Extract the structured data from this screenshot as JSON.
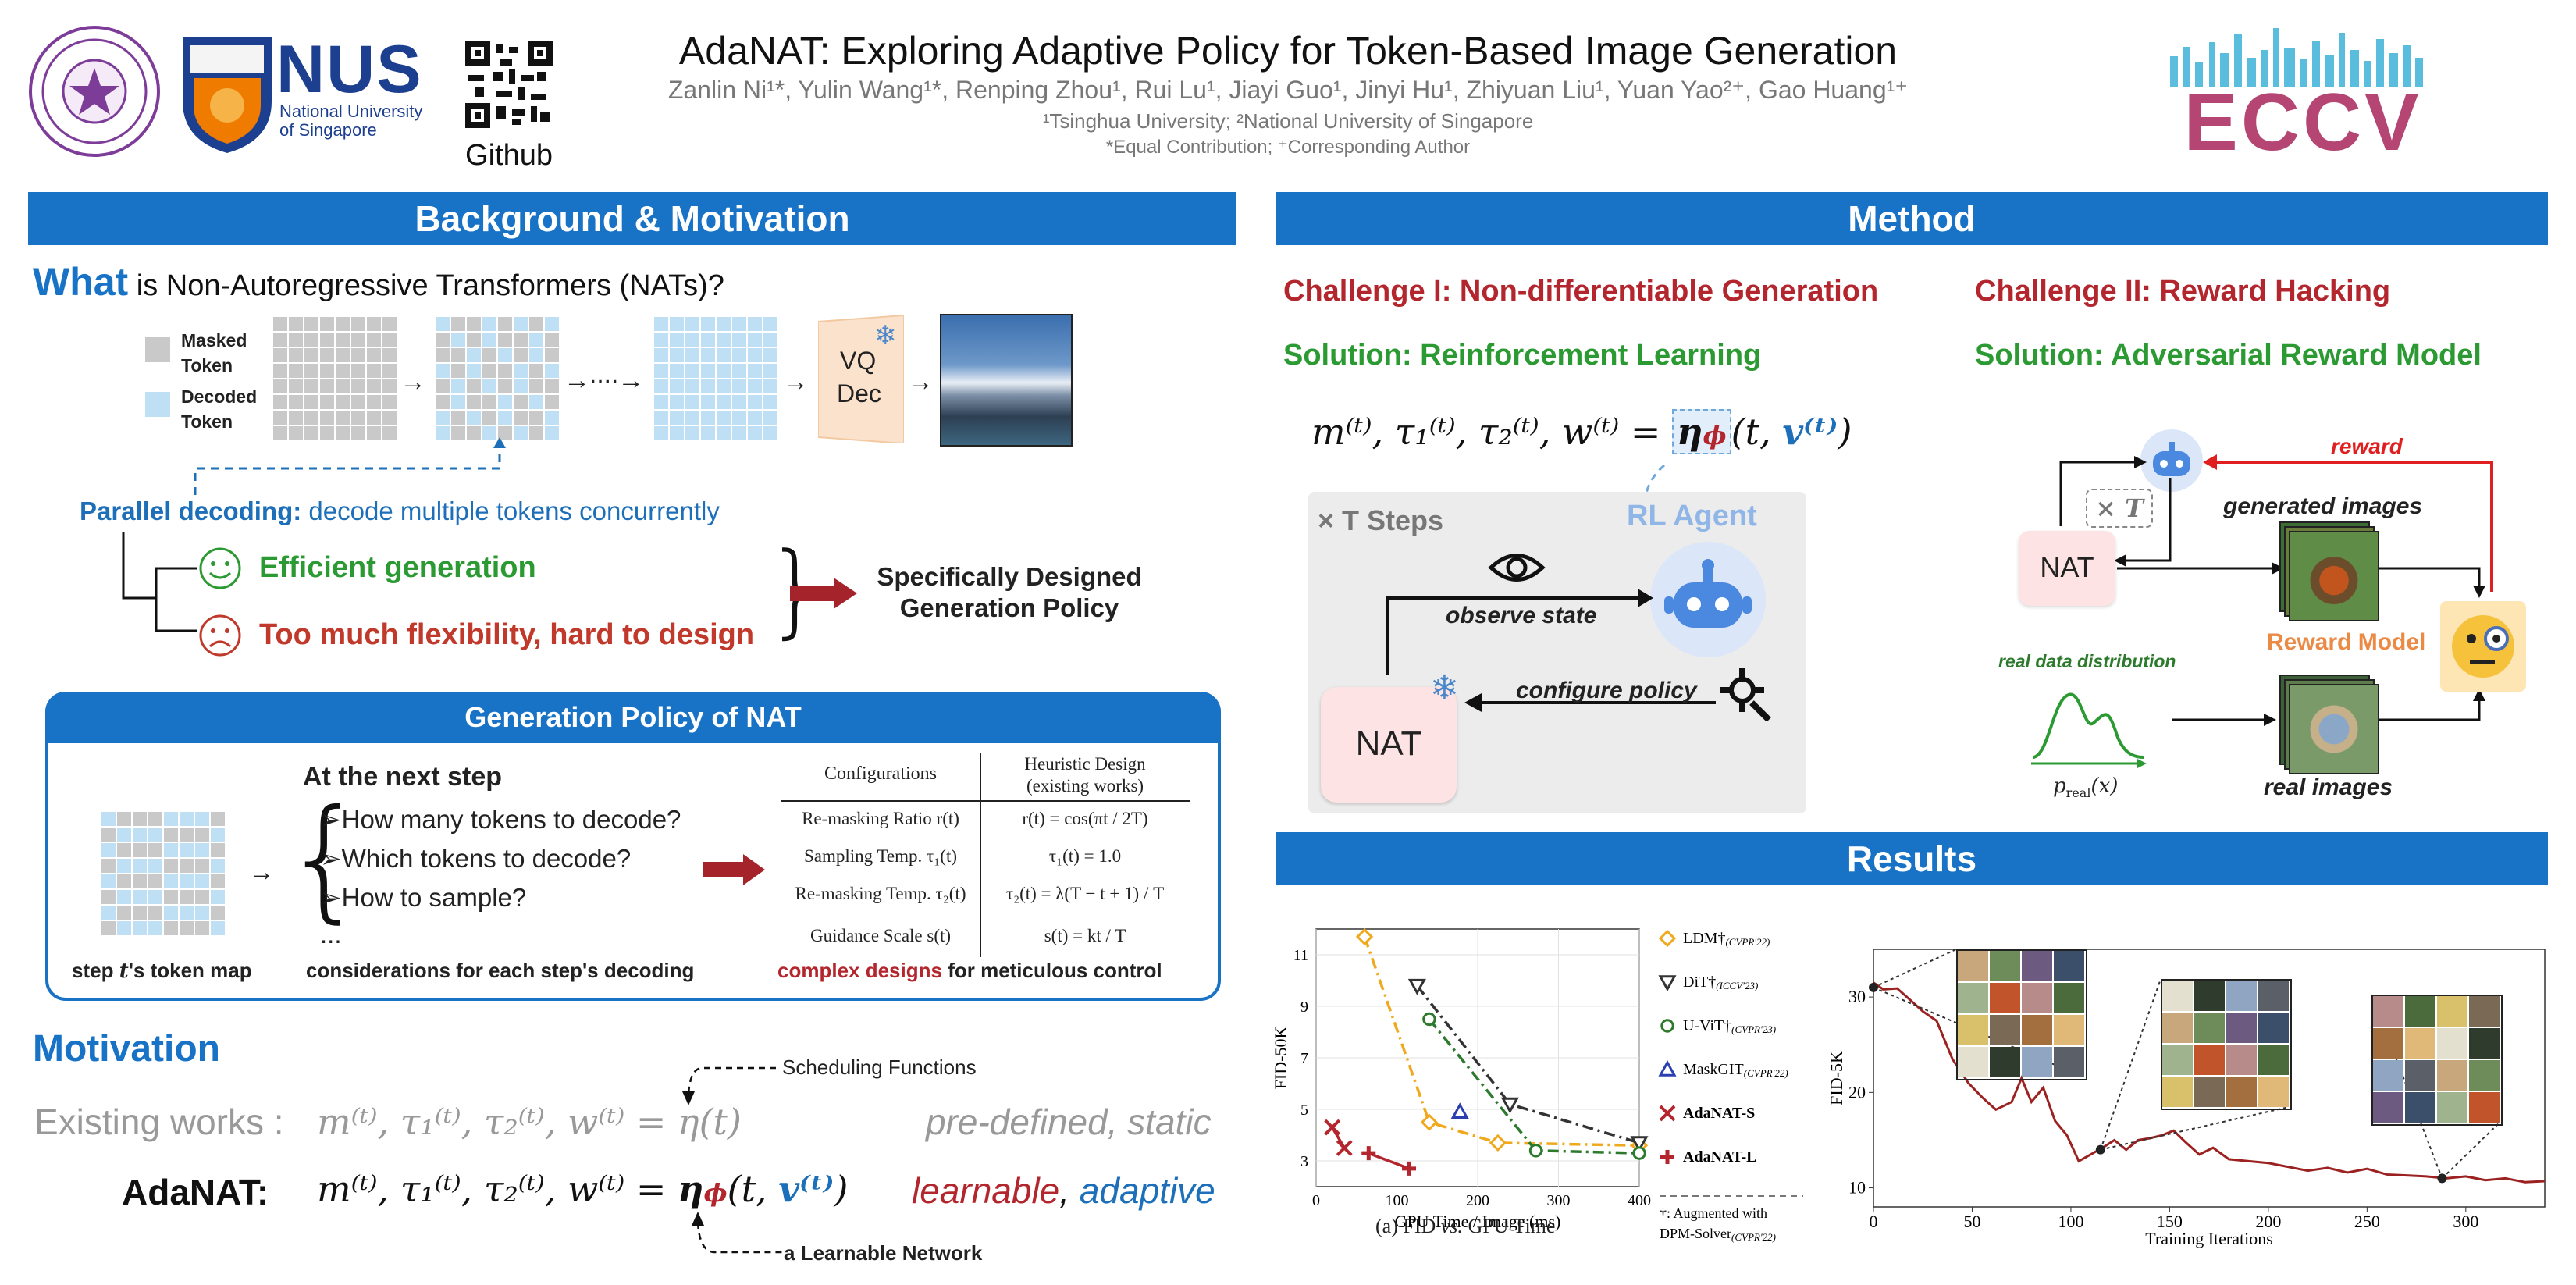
{
  "header": {
    "title": "AdaNAT: Exploring Adaptive Policy for Token-Based Image Generation",
    "authors": "Zanlin Ni¹*, Yulin Wang¹*, Renping Zhou¹, Rui Lu¹, Jiayi Guo¹, Jinyi Hu¹, Zhiyuan Liu¹, Yuan Yao²⁺, Gao Huang¹⁺",
    "affiliations": "¹Tsinghua University; ²National University of Singapore",
    "contribution_note": "*Equal Contribution; ⁺Corresponding Author",
    "nus_logo_text": "NUS",
    "nus_logo_sub1": "National University",
    "nus_logo_sub2": "of Singapore",
    "github_label": "Github",
    "eccv_logo_text": "ECCV"
  },
  "background": {
    "section_title": "Background & Motivation",
    "what_word": "What",
    "what_rest": " is Non-Autoregressive Transformers (NATs)?",
    "masked_token_label": "Masked Token",
    "decoded_token_label": "Decoded Token",
    "vq_label": "VQ",
    "dec_label": "Dec",
    "parallel_bold": "Parallel decoding:",
    "parallel_rest": " decode multiple tokens concurrently",
    "efficient": "Efficient generation",
    "flexibility": "Too much flexibility, hard to design",
    "specifically": "Specifically Designed",
    "generation_policy": "Generation Policy",
    "colors": {
      "masked": "#c9c9c9",
      "decoded": "#bfe0f4",
      "header": "#1873c6"
    }
  },
  "policy_box": {
    "title": "Generation Policy of NAT",
    "next_step": "At the next step",
    "questions": [
      "➢How many tokens to decode?",
      "➢Which tokens to decode?",
      "➢How to sample?",
      "..."
    ],
    "token_map_caption_pre": "step ",
    "token_map_caption_var": "t",
    "token_map_caption_post": "'s token map",
    "considerations_caption": "considerations for each step's decoding",
    "complex_red": "complex designs",
    "complex_rest": " for meticulous control",
    "table_headers": [
      "Configurations",
      "Heuristic Design",
      "(existing works)"
    ],
    "table_rows": [
      {
        "config": "Re-masking Ratio r(t)",
        "design": "r(t) = cos(πt / 2T)"
      },
      {
        "config": "Sampling Temp. τ₁(t)",
        "design": "τ₁(t) = 1.0"
      },
      {
        "config": "Re-masking Temp. τ₂(t)",
        "design": "τ₂(t) = λ(T − t + 1) / T"
      },
      {
        "config": "Guidance Scale s(t)",
        "design": "s(t) = kt / T"
      }
    ]
  },
  "motivation": {
    "title": "Motivation",
    "scheduling_label": "Scheduling Functions",
    "existing_label": "Existing works :",
    "existing_formula": "m⁽ᵗ⁾, τ₁⁽ᵗ⁾, τ₂⁽ᵗ⁾, w⁽ᵗ⁾ = η(t)",
    "existing_desc": "pre-defined, static",
    "adanat_label": "AdaNAT:",
    "adanat_formula_lhs": "m⁽ᵗ⁾, τ₁⁽ᵗ⁾, τ₂⁽ᵗ⁾, w⁽ᵗ⁾ = ",
    "adanat_eta": "η",
    "adanat_phi": "ϕ",
    "adanat_args_pre": "(t, ",
    "adanat_v": "v⁽ᵗ⁾",
    "adanat_args_post": ")",
    "learnable": "learnable",
    "comma": ",",
    "adaptive": "adaptive",
    "learnable_net": "a Learnable Network"
  },
  "method": {
    "section_title": "Method",
    "challenge1": "Challenge I: Non-differentiable Generation",
    "solution1": "Solution: Reinforcement Learning",
    "challenge2": "Challenge II: Reward Hacking",
    "solution2": "Solution: Adversarial Reward Model",
    "formula_lhs": "m⁽ᵗ⁾, τ₁⁽ᵗ⁾, τ₂⁽ᵗ⁾, w⁽ᵗ⁾ =",
    "formula_rhs_pre": "η",
    "formula_phi": "ϕ",
    "formula_args": "(t, ",
    "formula_v": "v⁽ᵗ⁾",
    "formula_end": ")",
    "steps_label": "× T  Steps",
    "rl_agent": "RL Agent",
    "observe_state": "observe state",
    "configure_policy": "configure policy",
    "nat_label": "NAT",
    "times_t": "× T",
    "reward": "reward",
    "generated_images": "generated images",
    "reward_model": "Reward Model",
    "real_data_dist": "real data distribution",
    "p_real": "p",
    "p_real_sub": "real",
    "p_real_arg": "(x)",
    "real_images": "real images",
    "colors": {
      "challenge": "#b3262d",
      "solution": "#2c9a32",
      "nat_box": "#fde3e3",
      "agent": "#dbe7f8",
      "reward_model_text": "#ea8a45"
    }
  },
  "results": {
    "section_title": "Results",
    "caption_pre": "(a) FID ",
    "caption_vs": "vs.",
    "caption_post": " GPU Time"
  },
  "chart_data": [
    {
      "type": "line",
      "title": "(a) FID vs. GPU Time",
      "xlabel": "GPU Time / Image (ms)",
      "ylabel": "FID-50K",
      "xlim": [
        0,
        400
      ],
      "ylim": [
        2,
        12
      ],
      "xticks": [
        0,
        100,
        200,
        300,
        400
      ],
      "yticks": [
        3,
        5,
        7,
        9,
        11
      ],
      "grid": true,
      "legend_position": "right",
      "series": [
        {
          "name": "LDM†",
          "venue": "(CVPR'22)",
          "marker": "diamond",
          "color": "#f0a91c",
          "dash": "dashdot",
          "points": [
            [
              60,
              11.7
            ],
            [
              140,
              4.5
            ],
            [
              225,
              3.7
            ],
            [
              400,
              3.6
            ]
          ]
        },
        {
          "name": "DiT†",
          "venue": "(ICCV'23)",
          "marker": "triangle-down",
          "color": "#333333",
          "dash": "dashdot",
          "points": [
            [
              125,
              9.8
            ],
            [
              240,
              5.2
            ],
            [
              400,
              3.7
            ]
          ]
        },
        {
          "name": "U-ViT†",
          "venue": "(CVPR'23)",
          "marker": "circle",
          "color": "#2c7a2c",
          "dash": "dashdot",
          "points": [
            [
              140,
              8.5
            ],
            [
              272,
              3.4
            ],
            [
              400,
              3.3
            ]
          ]
        },
        {
          "name": "MaskGIT",
          "venue": "(CVPR'22)",
          "marker": "triangle",
          "color": "#2a3fb0",
          "dash": "none",
          "points": [
            [
              178,
              4.9
            ]
          ]
        },
        {
          "name": "AdaNAT-S",
          "venue": "",
          "marker": "x",
          "color": "#b3262d",
          "dash": "solid",
          "points": [
            [
              20,
              4.3
            ],
            [
              35,
              3.5
            ]
          ]
        },
        {
          "name": "AdaNAT-L",
          "venue": "",
          "marker": "plus",
          "color": "#b3262d",
          "dash": "solid",
          "points": [
            [
              65,
              3.3
            ],
            [
              115,
              2.7
            ]
          ]
        }
      ],
      "legend_note_line1": "†: Augmented with",
      "legend_note_line2": "DPM-Solver",
      "legend_note_venue": "(CVPR'22)"
    },
    {
      "type": "line",
      "title": "",
      "xlabel": "Training Iterations",
      "ylabel": "FID-5K",
      "xlim": [
        0,
        340
      ],
      "ylim": [
        8,
        35
      ],
      "xticks": [
        0,
        50,
        100,
        150,
        200,
        250,
        300
      ],
      "yticks": [
        10,
        20,
        30
      ],
      "grid": false,
      "series": [
        {
          "name": "",
          "color": "#9c2222",
          "points": [
            [
              0,
              31.5
            ],
            [
              5,
              30.8
            ],
            [
              12,
              30.9
            ],
            [
              18,
              29.8
            ],
            [
              25,
              28.5
            ],
            [
              32,
              27.5
            ],
            [
              40,
              23.5
            ],
            [
              48,
              21
            ],
            [
              55,
              19.5
            ],
            [
              62,
              18.2
            ],
            [
              70,
              19
            ],
            [
              75,
              21.5
            ],
            [
              80,
              19
            ],
            [
              86,
              20.5
            ],
            [
              92,
              17
            ],
            [
              98,
              15.5
            ],
            [
              104,
              12.8
            ],
            [
              110,
              13.5
            ],
            [
              116,
              14.2
            ],
            [
              122,
              15
            ],
            [
              128,
              14
            ],
            [
              134,
              15
            ],
            [
              140,
              15.2
            ],
            [
              146,
              15.5
            ],
            [
              152,
              16
            ],
            [
              158,
              14.8
            ],
            [
              165,
              13.5
            ],
            [
              172,
              14.2
            ],
            [
              180,
              13
            ],
            [
              190,
              12.8
            ],
            [
              200,
              12.6
            ],
            [
              210,
              12.2
            ],
            [
              220,
              11.8
            ],
            [
              230,
              12.1
            ],
            [
              240,
              11.6
            ],
            [
              250,
              12
            ],
            [
              260,
              11.4
            ],
            [
              270,
              11.3
            ],
            [
              280,
              11.2
            ],
            [
              290,
              11
            ],
            [
              300,
              11.2
            ],
            [
              310,
              10.8
            ],
            [
              320,
              11
            ],
            [
              330,
              10.6
            ],
            [
              340,
              10.7
            ]
          ]
        }
      ],
      "highlight_points": [
        [
          0,
          31
        ],
        [
          115,
          14
        ],
        [
          288,
          11
        ]
      ]
    }
  ]
}
